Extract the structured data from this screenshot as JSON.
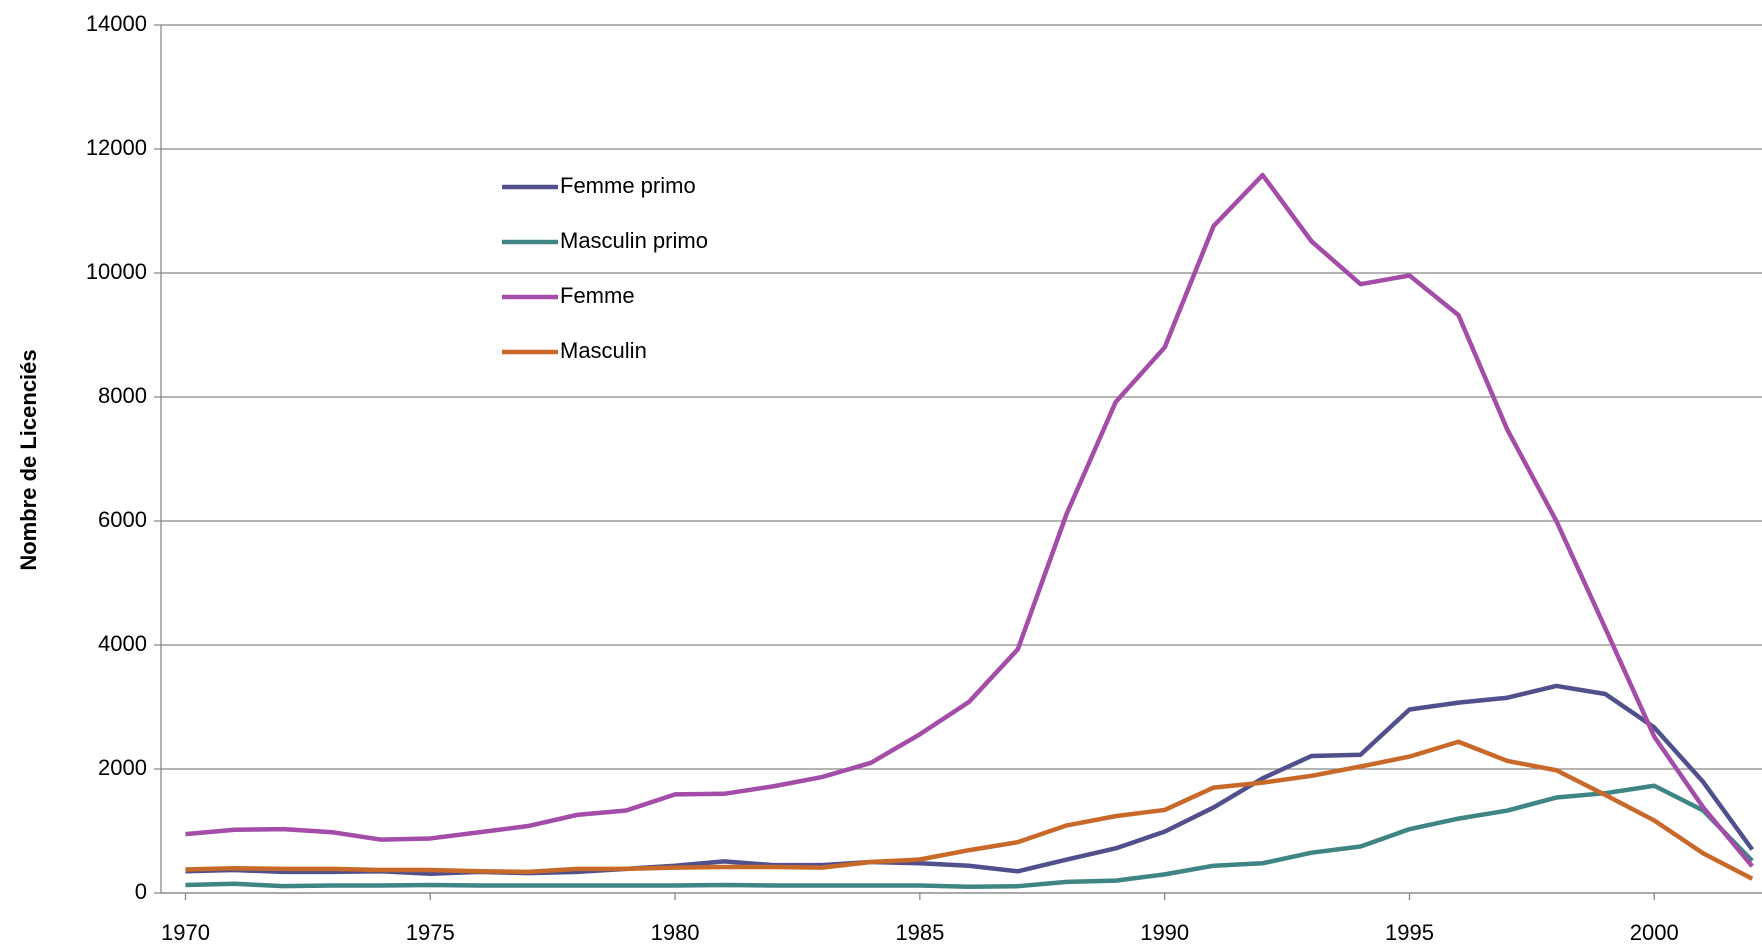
{
  "chart_data": {
    "type": "line",
    "y_label": "Nombre de Licenciés",
    "x": [
      1970,
      1971,
      1972,
      1973,
      1974,
      1975,
      1976,
      1977,
      1978,
      1979,
      1980,
      1981,
      1982,
      1983,
      1984,
      1985,
      1986,
      1987,
      1988,
      1989,
      1990,
      1991,
      1992,
      1993,
      1994,
      1995,
      1996,
      1997,
      1998,
      1999,
      2000,
      2001,
      2002
    ],
    "xlim": [
      1969.5,
      2002.2
    ],
    "xticks": [
      1970,
      1975,
      1980,
      1985,
      1990,
      1995,
      2000
    ],
    "ylim": [
      0,
      14000
    ],
    "yticks": [
      0,
      2000,
      4000,
      6000,
      8000,
      10000,
      12000,
      14000
    ],
    "grid": true,
    "legend": "upper-left",
    "series": [
      {
        "name": "Femme primo",
        "color": "#50508c",
        "values": [
          350,
          370,
          340,
          340,
          350,
          310,
          340,
          320,
          340,
          390,
          440,
          510,
          450,
          450,
          500,
          480,
          440,
          350,
          540,
          720,
          990,
          1380,
          1850,
          2210,
          2230,
          2960,
          3070,
          3150,
          3340,
          3210,
          2670,
          1790,
          700
        ]
      },
      {
        "name": "Masculin primo",
        "color": "#3f8584",
        "values": [
          130,
          150,
          110,
          120,
          120,
          130,
          120,
          120,
          120,
          120,
          120,
          130,
          120,
          120,
          120,
          120,
          100,
          110,
          180,
          200,
          300,
          440,
          480,
          650,
          750,
          1030,
          1200,
          1330,
          1540,
          1610,
          1730,
          1330,
          520
        ]
      },
      {
        "name": "Femme",
        "color": "#a34ca8",
        "values": [
          950,
          1020,
          1030,
          980,
          860,
          880,
          980,
          1080,
          1260,
          1330,
          1590,
          1600,
          1720,
          1870,
          2100,
          2560,
          3080,
          3930,
          6120,
          7920,
          8800,
          10760,
          11580,
          10510,
          9820,
          9960,
          9320,
          7470,
          6000,
          4270,
          2520,
          1380,
          430
        ]
      },
      {
        "name": "Masculin",
        "color": "#c8692a",
        "values": [
          380,
          400,
          390,
          390,
          370,
          370,
          350,
          340,
          390,
          390,
          410,
          420,
          420,
          410,
          500,
          540,
          690,
          820,
          1090,
          1240,
          1340,
          1700,
          1780,
          1890,
          2040,
          2200,
          2440,
          2130,
          1980,
          1580,
          1170,
          640,
          230
        ]
      }
    ]
  }
}
